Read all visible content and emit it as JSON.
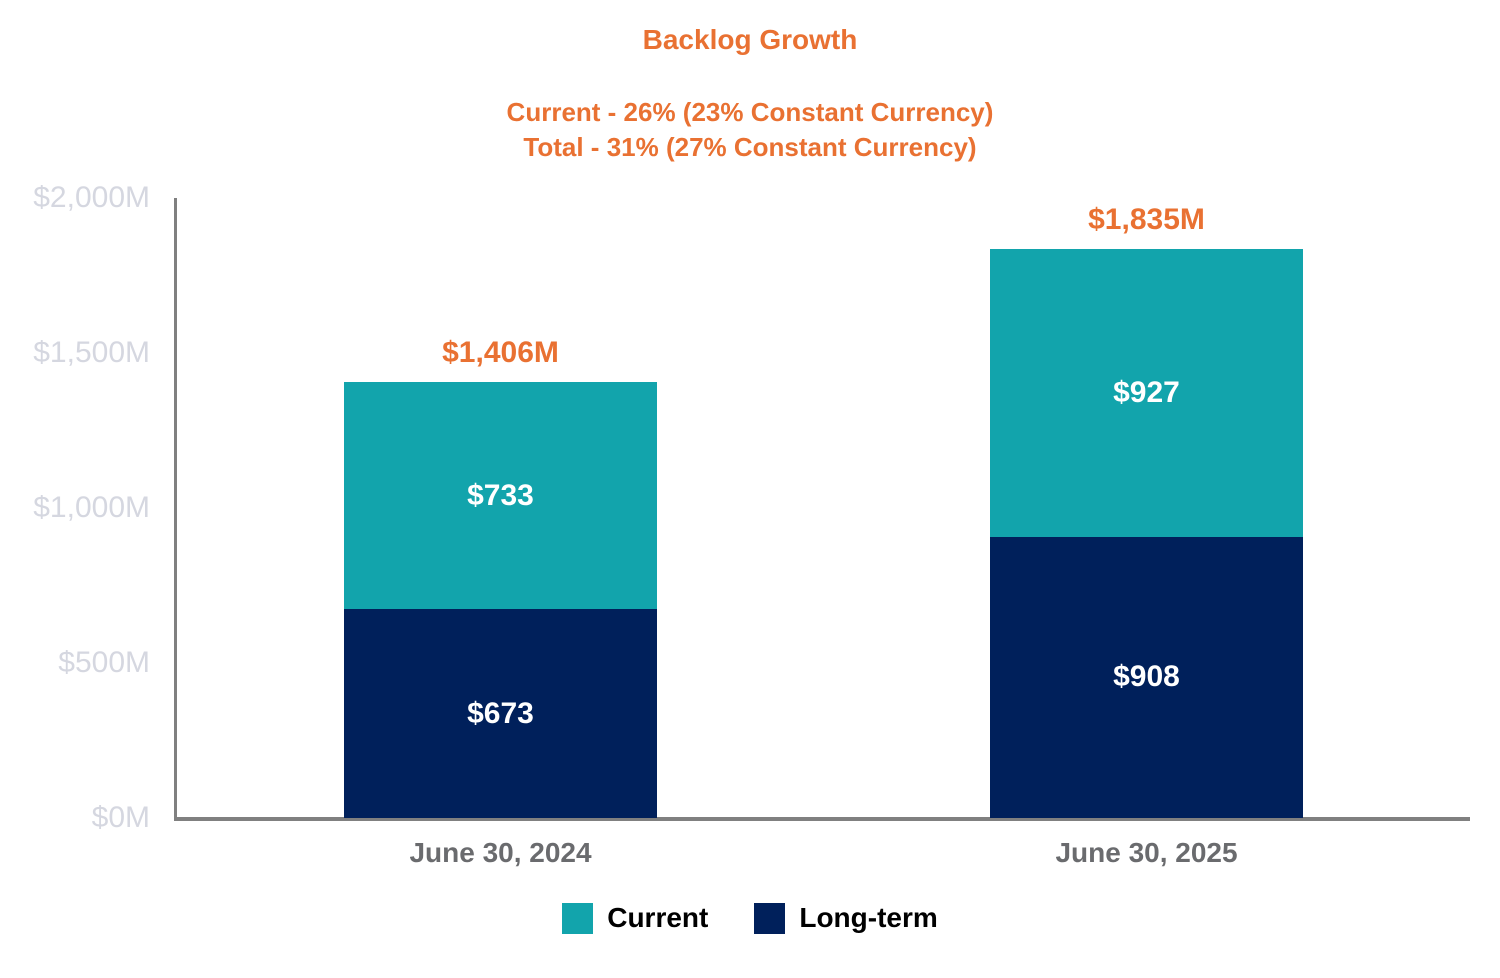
{
  "title": "Backlog Growth",
  "subtitle_line1": "Current - 26% (23% Constant Currency)",
  "subtitle_line2": "Total - 31% (27% Constant Currency)",
  "colors": {
    "accent_orange": "#E97132",
    "teal": "#12A4AC",
    "navy": "#00205B",
    "axis_line": "#808080",
    "y_tick_label": "#D5D7E0",
    "x_tick_label": "#6A6B6E",
    "legend_text": "#000000"
  },
  "chart_data": {
    "type": "bar",
    "stacked": true,
    "title": "Backlog Growth",
    "subtitle": [
      "Current - 26% (23% Constant Currency)",
      "Total - 31% (27% Constant Currency)"
    ],
    "categories": [
      "June 30, 2024",
      "June 30, 2025"
    ],
    "series": [
      {
        "name": "Long-term",
        "values": [
          673,
          908
        ],
        "color": "#00205B"
      },
      {
        "name": "Current",
        "values": [
          733,
          927
        ],
        "color": "#12A4AC"
      }
    ],
    "totals": [
      1406,
      1835
    ],
    "total_labels": [
      "$1,406M",
      "$1,835M"
    ],
    "segment_labels": [
      [
        "$673",
        "$733"
      ],
      [
        "$908",
        "$927"
      ]
    ],
    "ylabel_ticks": [
      "$0M",
      "$500M",
      "$1,000M",
      "$1,500M",
      "$2,000M"
    ],
    "ylim": [
      0,
      2000
    ],
    "xlabel": "",
    "ylabel": "",
    "grid": false,
    "legend": [
      "Current",
      "Long-term"
    ],
    "legend_position": "bottom"
  }
}
